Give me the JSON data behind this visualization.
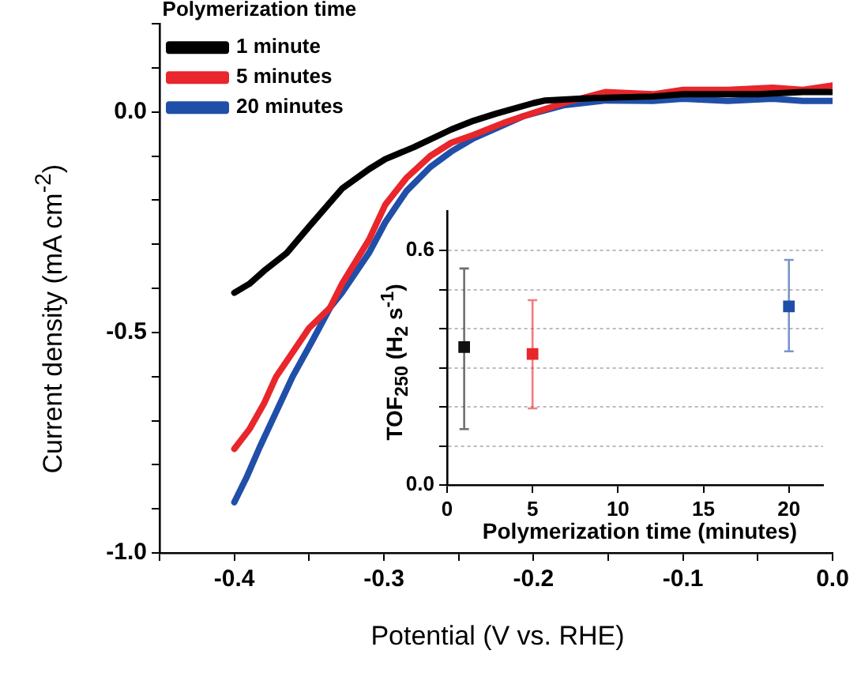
{
  "chart_data": [
    {
      "type": "line",
      "xlabel": "Potential (V vs. RHE)",
      "ylabel": "Current density (mA cm$^{-2}$)",
      "legend_title": "Polymerization time",
      "legend": "top left",
      "grid": false,
      "marker": "none",
      "line_style": "solid",
      "xlim": [
        -0.45,
        0
      ],
      "ylim": [
        -1.0,
        0.2
      ],
      "xticks": [
        {
          "value": -0.45,
          "label": null
        },
        -0.4,
        {
          "value": -0.35,
          "label": null
        },
        -0.3,
        {
          "value": -0.25,
          "label": null
        },
        -0.2,
        {
          "value": -0.15,
          "label": null
        },
        -0.1,
        {
          "value": -0.05,
          "label": null
        },
        {
          "value": 0,
          "label": "0.0"
        }
      ],
      "yticks": [
        {
          "value": -1.0,
          "label": "-1.0"
        },
        {
          "value": -0.9,
          "label": null
        },
        {
          "value": -0.8,
          "label": null
        },
        {
          "value": -0.7,
          "label": null
        },
        {
          "value": -0.6,
          "label": null
        },
        -0.5,
        {
          "value": -0.4,
          "label": null
        },
        {
          "value": -0.3,
          "label": null
        },
        {
          "value": -0.2,
          "label": null
        },
        {
          "value": -0.1,
          "label": null
        },
        {
          "value": 0,
          "label": "0.0"
        },
        {
          "value": 0.1,
          "label": null
        },
        {
          "value": 0.2,
          "label": null
        }
      ],
      "series": [
        {
          "name": "1 minute",
          "color": "#000000",
          "x": [
            -0.4,
            -0.39,
            -0.38,
            -0.365,
            -0.35,
            -0.328,
            -0.31,
            -0.299,
            -0.28,
            -0.255,
            -0.24,
            -0.225,
            -0.2,
            -0.192,
            -0.17,
            -0.152,
            -0.12,
            -0.1,
            -0.08,
            -0.05,
            -0.02,
            0
          ],
          "values": [
            -0.41,
            -0.39,
            -0.36,
            -0.32,
            -0.26,
            -0.174,
            -0.13,
            -0.107,
            -0.08,
            -0.04,
            -0.02,
            -0.004,
            0.02,
            0.026,
            0.03,
            0.032,
            0.035,
            0.04,
            0.04,
            0.04,
            0.045,
            0.045
          ]
        },
        {
          "name": "5 minutes",
          "color": "#e8262b",
          "x": [
            -0.4,
            -0.39,
            -0.38,
            -0.372,
            -0.36,
            -0.35,
            -0.336,
            -0.328,
            -0.31,
            -0.299,
            -0.285,
            -0.269,
            -0.255,
            -0.24,
            -0.22,
            -0.207,
            -0.18,
            -0.152,
            -0.12,
            -0.1,
            -0.07,
            -0.04,
            -0.02,
            0
          ],
          "values": [
            -0.764,
            -0.72,
            -0.66,
            -0.6,
            -0.54,
            -0.49,
            -0.444,
            -0.39,
            -0.29,
            -0.21,
            -0.15,
            -0.1,
            -0.07,
            -0.052,
            -0.025,
            -0.01,
            0.02,
            0.045,
            0.04,
            0.05,
            0.05,
            0.055,
            0.05,
            0.06
          ]
        },
        {
          "name": "20 minutes",
          "color": "#1f4fa8",
          "x": [
            -0.4,
            -0.392,
            -0.383,
            -0.372,
            -0.361,
            -0.348,
            -0.336,
            -0.328,
            -0.31,
            -0.299,
            -0.285,
            -0.269,
            -0.255,
            -0.24,
            -0.22,
            -0.207,
            -0.18,
            -0.152,
            -0.12,
            -0.1,
            -0.07,
            -0.04,
            -0.02,
            0
          ],
          "values": [
            -0.885,
            -0.83,
            -0.76,
            -0.68,
            -0.6,
            -0.52,
            -0.444,
            -0.41,
            -0.32,
            -0.25,
            -0.18,
            -0.125,
            -0.09,
            -0.06,
            -0.03,
            -0.01,
            0.015,
            0.026,
            0.025,
            0.03,
            0.025,
            0.03,
            0.025,
            0.025
          ]
        }
      ]
    },
    {
      "type": "scatter",
      "xlabel": "Polymerization time (minutes)",
      "ylabel": "TOF$_{250}$ (H$_{2}$ s$^{-1}$)",
      "grid": "y",
      "marker": "square",
      "legend": false,
      "xlim": [
        0,
        22
      ],
      "ylim": [
        0,
        0.7
      ],
      "xticks": [
        0,
        5,
        10,
        15,
        20
      ],
      "yticks": [
        {
          "value": 0,
          "label": "0.0"
        },
        {
          "value": 0.1,
          "label": null
        },
        {
          "value": 0.2,
          "label": null
        },
        {
          "value": 0.3,
          "label": null
        },
        {
          "value": 0.4,
          "label": null
        },
        {
          "value": 0.5,
          "label": null
        },
        0.6
      ],
      "x": [
        1,
        5,
        20
      ],
      "values": [
        0.353,
        0.335,
        0.457
      ],
      "colors": [
        "#111111",
        "#e8262b",
        "#1f4fa8"
      ],
      "errors": [
        [
          0.143,
          0.554
        ],
        [
          0.196,
          0.473
        ],
        [
          0.342,
          0.576
        ]
      ]
    }
  ]
}
